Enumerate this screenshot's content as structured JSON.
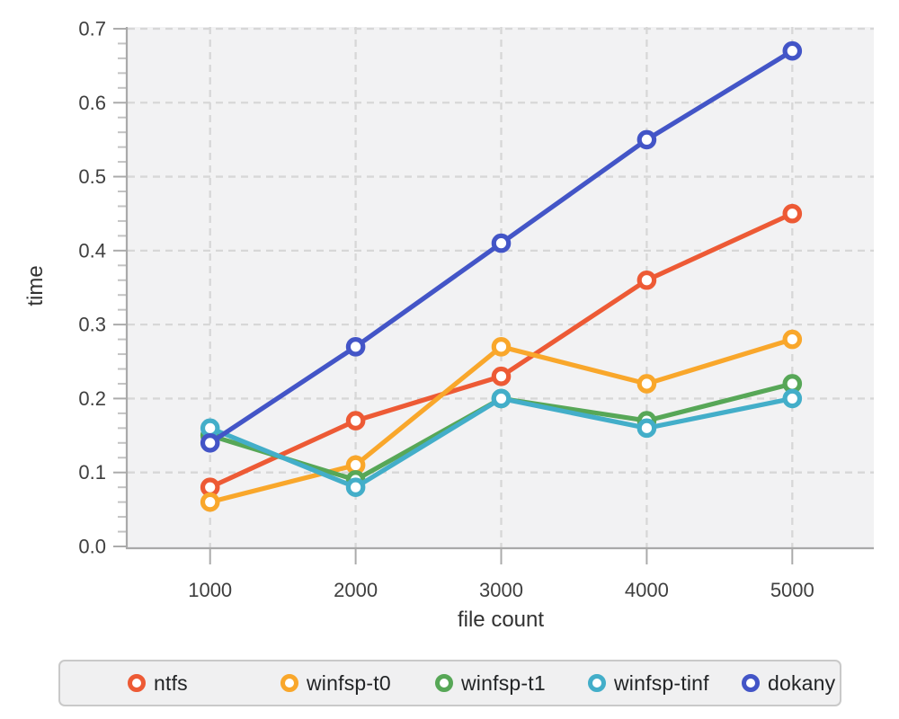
{
  "figure": {
    "background": "#ffffff",
    "panel_background": "#f2f2f3",
    "grid_color": "#d7d7d7",
    "spine_color": "#a9a9a9",
    "major_tick_color": "#ababab",
    "minor_tick_color": "#c3c3c3",
    "tick_label_color": "#3f3f3f",
    "axis_title_color": "#323232"
  },
  "chart_data": {
    "type": "line",
    "title": "",
    "xlabel": "file count",
    "ylabel": "time",
    "x": [
      1000,
      2000,
      3000,
      4000,
      5000
    ],
    "xticks": [
      1000,
      2000,
      3000,
      4000,
      5000
    ],
    "yticks": [
      0.0,
      0.1,
      0.2,
      0.3,
      0.4,
      0.5,
      0.6,
      0.7
    ],
    "ylim": [
      0.0,
      0.7
    ],
    "xlim": [
      420,
      5560
    ],
    "grid": "dashed-major-xy",
    "minor_tick_step_y": 0.02,
    "marker": "open-circle",
    "legend_position": "bottom",
    "series": [
      {
        "name": "ntfs",
        "color": "#ed5a35",
        "values": [
          0.08,
          0.17,
          0.23,
          0.36,
          0.45
        ]
      },
      {
        "name": "winfsp-t0",
        "color": "#f9a72b",
        "values": [
          0.06,
          0.11,
          0.27,
          0.22,
          0.28
        ]
      },
      {
        "name": "winfsp-t1",
        "color": "#57a757",
        "values": [
          0.15,
          0.09,
          0.2,
          0.17,
          0.22
        ]
      },
      {
        "name": "winfsp-tinf",
        "color": "#43aec9",
        "values": [
          0.16,
          0.08,
          0.2,
          0.16,
          0.2
        ]
      },
      {
        "name": "dokany",
        "color": "#4355c7",
        "values": [
          0.14,
          0.27,
          0.41,
          0.55,
          0.67
        ]
      }
    ]
  }
}
